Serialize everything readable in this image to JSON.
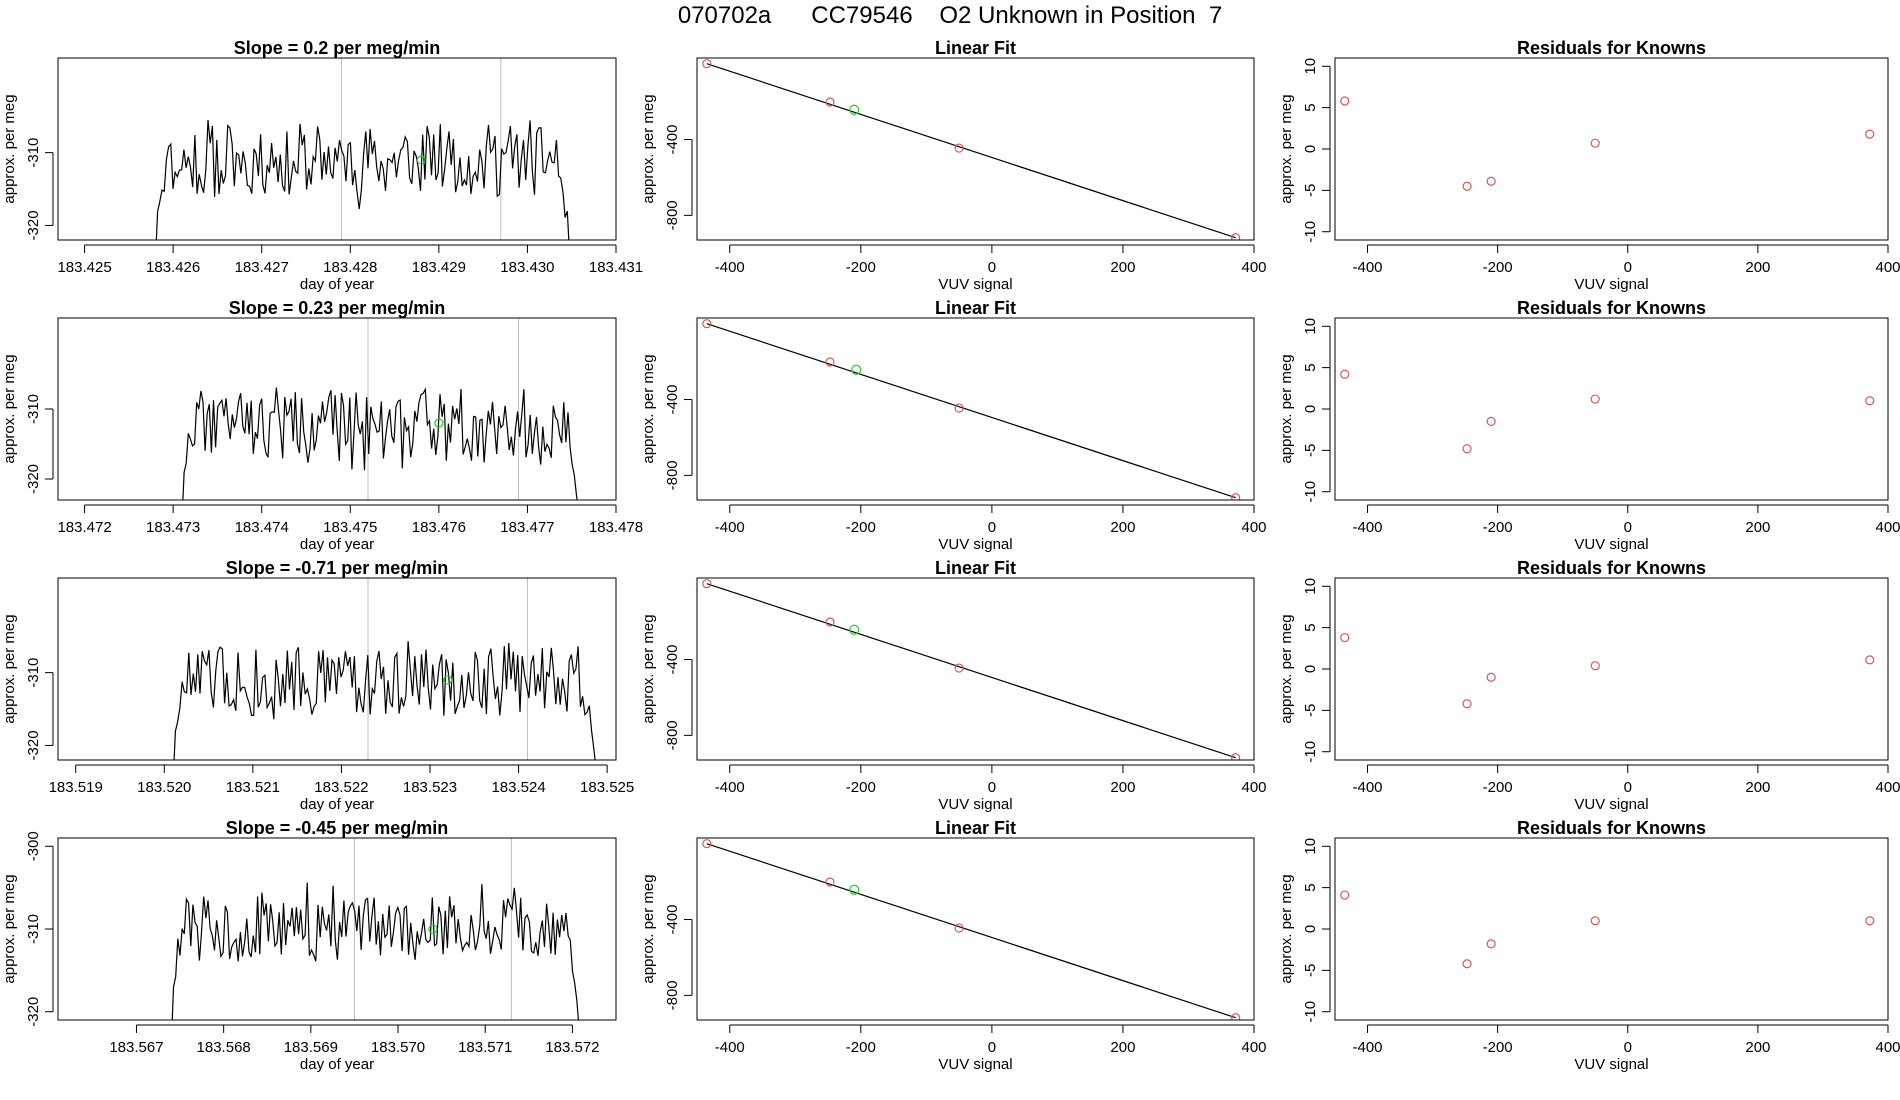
{
  "page": {
    "title": "070702a      CC79546    O2 Unknown in Position  7"
  },
  "colors": {
    "line": "#000000",
    "vline": "#bebebe",
    "known_point": "#cd5c5c",
    "unknown_point": "#22cc22"
  },
  "chart_data": [
    {
      "type": "line",
      "panel": "time-series-1",
      "title": "Slope =  0.2  per meg/min",
      "xlabel": "day of year",
      "ylabel": "approx. per meg",
      "xlim": [
        183.4247,
        183.431
      ],
      "ylim": [
        -322,
        -297
      ],
      "xticks": [
        183.425,
        183.426,
        183.427,
        183.428,
        183.429,
        183.43,
        183.431
      ],
      "xtick_labels": [
        "183.425",
        "183.426",
        "183.427",
        "183.428",
        "183.429",
        "183.430",
        "183.431"
      ],
      "yticks": [
        -310,
        -320
      ],
      "ytick_labels": [
        "-310",
        "-320"
      ],
      "data_start": 183.4258,
      "data_end": 183.4305,
      "vlines": [
        183.4279,
        183.4297
      ],
      "highlight_point": {
        "x": 183.4288,
        "y": -311
      },
      "seed": 11,
      "center": -310,
      "amp": 5
    },
    {
      "type": "scatter",
      "panel": "linear-fit-1",
      "title": "Linear Fit",
      "xlabel": "VUV signal",
      "ylabel": "approx. per meg",
      "xlim": [
        -450,
        400
      ],
      "ylim": [
        -930,
        30
      ],
      "xticks": [
        -400,
        -200,
        0,
        200,
        400
      ],
      "xtick_labels": [
        "-400",
        "-200",
        "0",
        "200",
        "400"
      ],
      "yticks": [
        -400,
        -800
      ],
      "ytick_labels": [
        "-400",
        "-800"
      ],
      "known_points": [
        {
          "x": -435,
          "y": 0
        },
        {
          "x": -247,
          "y": -202
        },
        {
          "x": -50,
          "y": -445
        },
        {
          "x": 372,
          "y": -918
        }
      ],
      "unknown_point": {
        "x": -210,
        "y": -243
      },
      "fit_line": [
        {
          "x": -435,
          "y": 0
        },
        {
          "x": 372,
          "y": -918
        }
      ]
    },
    {
      "type": "scatter",
      "panel": "residuals-1",
      "title": "Residuals for Knowns",
      "xlabel": "VUV signal",
      "ylabel": "approx. per meg",
      "xlim": [
        -450,
        400
      ],
      "ylim": [
        -11,
        11
      ],
      "xticks": [
        -400,
        -200,
        0,
        200,
        400
      ],
      "xtick_labels": [
        "-400",
        "-200",
        "0",
        "200",
        "400"
      ],
      "yticks": [
        10,
        5,
        0,
        -5,
        -10
      ],
      "ytick_labels": [
        "10",
        "5",
        "0",
        "-5",
        "-10"
      ],
      "points": [
        {
          "x": -435,
          "y": 5.8
        },
        {
          "x": -247,
          "y": -4.5
        },
        {
          "x": -210,
          "y": -3.9
        },
        {
          "x": -50,
          "y": 0.7
        },
        {
          "x": 372,
          "y": 1.8
        }
      ]
    },
    {
      "type": "line",
      "panel": "time-series-2",
      "title": "Slope =  0.23  per meg/min",
      "xlabel": "day of year",
      "ylabel": "approx. per meg",
      "xlim": [
        183.4717,
        183.478
      ],
      "ylim": [
        -323,
        -297
      ],
      "xticks": [
        183.472,
        183.473,
        183.474,
        183.475,
        183.476,
        183.477,
        183.478
      ],
      "xtick_labels": [
        "183.472",
        "183.473",
        "183.474",
        "183.475",
        "183.476",
        "183.477",
        "183.478"
      ],
      "yticks": [
        -310,
        -320
      ],
      "ytick_labels": [
        "-310",
        "-320"
      ],
      "data_start": 183.4731,
      "data_end": 183.4776,
      "vlines": [
        183.4752,
        183.4769
      ],
      "highlight_point": {
        "x": 183.476,
        "y": -312
      },
      "seed": 22,
      "center": -311,
      "amp": 5
    },
    {
      "type": "scatter",
      "panel": "linear-fit-2",
      "title": "Linear Fit",
      "xlabel": "VUV signal",
      "ylabel": "approx. per meg",
      "xlim": [
        -450,
        400
      ],
      "ylim": [
        -930,
        30
      ],
      "xticks": [
        -400,
        -200,
        0,
        200,
        400
      ],
      "xtick_labels": [
        "-400",
        "-200",
        "0",
        "200",
        "400"
      ],
      "yticks": [
        -400,
        -800
      ],
      "ytick_labels": [
        "-400",
        "-800"
      ],
      "known_points": [
        {
          "x": -435,
          "y": 0
        },
        {
          "x": -247,
          "y": -202
        },
        {
          "x": -50,
          "y": -445
        },
        {
          "x": 372,
          "y": -918
        }
      ],
      "unknown_point": {
        "x": -207,
        "y": -243
      },
      "fit_line": [
        {
          "x": -435,
          "y": 0
        },
        {
          "x": 372,
          "y": -918
        }
      ]
    },
    {
      "type": "scatter",
      "panel": "residuals-2",
      "title": "Residuals for Knowns",
      "xlabel": "VUV signal",
      "ylabel": "approx. per meg",
      "xlim": [
        -450,
        400
      ],
      "ylim": [
        -11,
        11
      ],
      "xticks": [
        -400,
        -200,
        0,
        200,
        400
      ],
      "xtick_labels": [
        "-400",
        "-200",
        "0",
        "200",
        "400"
      ],
      "yticks": [
        10,
        5,
        0,
        -5,
        -10
      ],
      "ytick_labels": [
        "10",
        "5",
        "0",
        "-5",
        "-10"
      ],
      "points": [
        {
          "x": -435,
          "y": 4.2
        },
        {
          "x": -247,
          "y": -4.8
        },
        {
          "x": -210,
          "y": -1.5
        },
        {
          "x": -50,
          "y": 1.2
        },
        {
          "x": 372,
          "y": 1.0
        }
      ]
    },
    {
      "type": "line",
      "panel": "time-series-3",
      "title": "Slope =  -0.71  per meg/min",
      "xlabel": "day of year",
      "ylabel": "approx. per meg",
      "xlim": [
        183.5188,
        183.5251
      ],
      "ylim": [
        -322,
        -297
      ],
      "xticks": [
        183.519,
        183.52,
        183.521,
        183.522,
        183.523,
        183.524,
        183.525
      ],
      "xtick_labels": [
        "183.519",
        "183.520",
        "183.521",
        "183.522",
        "183.523",
        "183.524",
        "183.525"
      ],
      "yticks": [
        -310,
        -320
      ],
      "ytick_labels": [
        "-310",
        "-320"
      ],
      "data_start": 183.5201,
      "data_end": 183.5249,
      "vlines": [
        183.5223,
        183.5241
      ],
      "highlight_point": {
        "x": 183.5232,
        "y": -311
      },
      "seed": 33,
      "center": -310,
      "amp": 5
    },
    {
      "type": "scatter",
      "panel": "linear-fit-3",
      "title": "Linear Fit",
      "xlabel": "VUV signal",
      "ylabel": "approx. per meg",
      "xlim": [
        -450,
        400
      ],
      "ylim": [
        -930,
        30
      ],
      "xticks": [
        -400,
        -200,
        0,
        200,
        400
      ],
      "xtick_labels": [
        "-400",
        "-200",
        "0",
        "200",
        "400"
      ],
      "yticks": [
        -400,
        -800
      ],
      "ytick_labels": [
        "-400",
        "-800"
      ],
      "known_points": [
        {
          "x": -435,
          "y": 0
        },
        {
          "x": -247,
          "y": -202
        },
        {
          "x": -50,
          "y": -445
        },
        {
          "x": 372,
          "y": -918
        }
      ],
      "unknown_point": {
        "x": -210,
        "y": -243
      },
      "fit_line": [
        {
          "x": -435,
          "y": 0
        },
        {
          "x": 372,
          "y": -918
        }
      ]
    },
    {
      "type": "scatter",
      "panel": "residuals-3",
      "title": "Residuals for Knowns",
      "xlabel": "VUV signal",
      "ylabel": "approx. per meg",
      "xlim": [
        -450,
        400
      ],
      "ylim": [
        -11,
        11
      ],
      "xticks": [
        -400,
        -200,
        0,
        200,
        400
      ],
      "xtick_labels": [
        "-400",
        "-200",
        "0",
        "200",
        "400"
      ],
      "yticks": [
        10,
        5,
        0,
        -5,
        -10
      ],
      "ytick_labels": [
        "10",
        "5",
        "0",
        "-5",
        "-10"
      ],
      "points": [
        {
          "x": -435,
          "y": 3.8
        },
        {
          "x": -247,
          "y": -4.2
        },
        {
          "x": -210,
          "y": -1.0
        },
        {
          "x": -50,
          "y": 0.4
        },
        {
          "x": 372,
          "y": 1.1
        }
      ]
    },
    {
      "type": "line",
      "panel": "time-series-4",
      "title": "Slope =  -0.45  per meg/min",
      "xlabel": "day of year",
      "ylabel": "approx. per meg",
      "xlim": [
        183.5661,
        183.5725
      ],
      "ylim": [
        -321,
        -299
      ],
      "xticks": [
        183.567,
        183.568,
        183.569,
        183.57,
        183.571,
        183.572
      ],
      "xtick_labels": [
        "183.567",
        "183.568",
        "183.569",
        "183.570",
        "183.571",
        "183.572"
      ],
      "yticks": [
        -300,
        -310,
        -320
      ],
      "ytick_labels": [
        "-300",
        "-310",
        "-320"
      ],
      "data_start": 183.5674,
      "data_end": 183.5721,
      "vlines": [
        183.5695,
        183.5713
      ],
      "highlight_point": {
        "x": 183.5704,
        "y": -310
      },
      "seed": 44,
      "center": -309,
      "amp": 4
    },
    {
      "type": "scatter",
      "panel": "linear-fit-4",
      "title": "Linear Fit",
      "xlabel": "VUV signal",
      "ylabel": "approx. per meg",
      "xlim": [
        -450,
        400
      ],
      "ylim": [
        -930,
        30
      ],
      "xticks": [
        -400,
        -200,
        0,
        200,
        400
      ],
      "xtick_labels": [
        "-400",
        "-200",
        "0",
        "200",
        "400"
      ],
      "yticks": [
        -400,
        -800
      ],
      "ytick_labels": [
        "-400",
        "-800"
      ],
      "known_points": [
        {
          "x": -435,
          "y": 0
        },
        {
          "x": -247,
          "y": -202
        },
        {
          "x": -50,
          "y": -445
        },
        {
          "x": 372,
          "y": -918
        }
      ],
      "unknown_point": {
        "x": -210,
        "y": -243
      },
      "fit_line": [
        {
          "x": -435,
          "y": 0
        },
        {
          "x": 372,
          "y": -918
        }
      ]
    },
    {
      "type": "scatter",
      "panel": "residuals-4",
      "title": "Residuals for Knowns",
      "xlabel": "VUV signal",
      "ylabel": "approx. per meg",
      "xlim": [
        -450,
        400
      ],
      "ylim": [
        -11,
        11
      ],
      "xticks": [
        -400,
        -200,
        0,
        200,
        400
      ],
      "xtick_labels": [
        "-400",
        "-200",
        "0",
        "200",
        "400"
      ],
      "yticks": [
        10,
        5,
        0,
        -5,
        -10
      ],
      "ytick_labels": [
        "10",
        "5",
        "0",
        "-5",
        "-10"
      ],
      "points": [
        {
          "x": -435,
          "y": 4.1
        },
        {
          "x": -247,
          "y": -4.2
        },
        {
          "x": -210,
          "y": -1.8
        },
        {
          "x": -50,
          "y": 1.0
        },
        {
          "x": 372,
          "y": 1.0
        }
      ]
    }
  ]
}
